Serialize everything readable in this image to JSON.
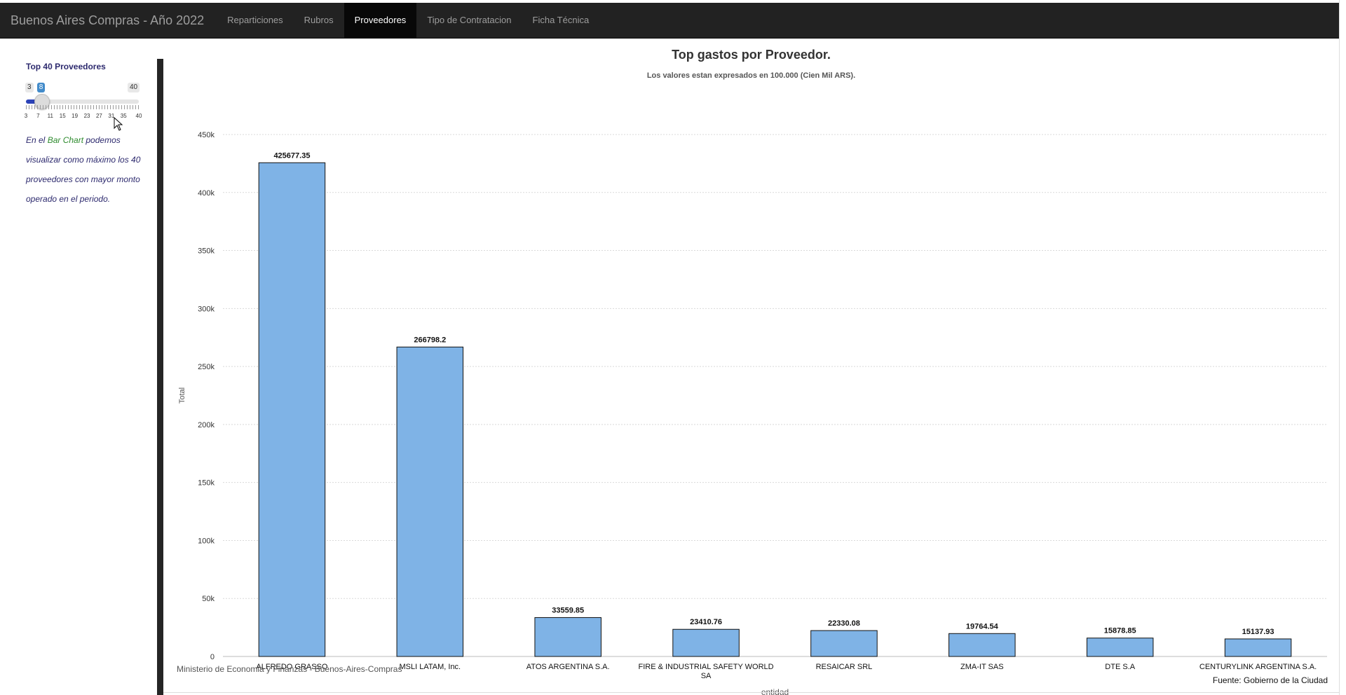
{
  "navbar": {
    "brand": "Buenos Aires Compras - Año 2022",
    "items": [
      {
        "label": "Reparticiones",
        "active": false
      },
      {
        "label": "Rubros",
        "active": false
      },
      {
        "label": "Proveedores",
        "active": true
      },
      {
        "label": "Tipo de Contratacion",
        "active": false
      },
      {
        "label": "Ficha Técnica",
        "active": false
      }
    ]
  },
  "sidebar": {
    "slider": {
      "title": "Top 40 Proveedores",
      "min": 3,
      "max": 40,
      "value": 8,
      "min_label": "3",
      "max_label": "40",
      "value_label": "8",
      "tick_labels": [
        "3",
        "7",
        "11",
        "15",
        "19",
        "23",
        "27",
        "31",
        "35",
        "40"
      ]
    },
    "description_parts": {
      "part1": "En el ",
      "highlight": "Bar Chart",
      "part2": " podemos visualizar como máximo los 40 proveedores con mayor monto operado en el periodo."
    }
  },
  "chart_data": {
    "type": "bar",
    "title": "Top gastos por Proveedor.",
    "subtitle": "Los valores estan expresados en 100.000 (Cien Mil ARS).",
    "xlabel": "entidad",
    "ylabel": "Total",
    "ylim": [
      0,
      450000
    ],
    "yticks": [
      0,
      50000,
      100000,
      150000,
      200000,
      250000,
      300000,
      350000,
      400000,
      450000
    ],
    "ytick_labels": [
      "0",
      "50k",
      "100k",
      "150k",
      "200k",
      "250k",
      "300k",
      "350k",
      "400k",
      "450k"
    ],
    "grid": true,
    "categories": [
      [
        "ALFREDO GRASSO"
      ],
      [
        "MSLI LATAM, Inc."
      ],
      [
        "ATOS ARGENTINA S.A."
      ],
      [
        "FIRE & INDUSTRIAL SAFETY WORLD",
        "SA"
      ],
      [
        "RESAICAR SRL"
      ],
      [
        "ZMA-IT SAS"
      ],
      [
        "DTE S.A"
      ],
      [
        "CENTURYLINK ARGENTINA S.A."
      ]
    ],
    "values": [
      425677.35,
      266798.2,
      33559.85,
      23410.76,
      22330.08,
      19764.54,
      15878.85,
      15137.93
    ],
    "value_labels": [
      "425677.35",
      "266798.2",
      "33559.85",
      "23410.76",
      "22330.08",
      "19764.54",
      "15878.85",
      "15137.93"
    ],
    "bar_color": "#7fb3e6",
    "bar_stroke": "#111111"
  },
  "footer": {
    "left": "Ministerio de Economia y Finanzas - Buenos-Aires-Compras",
    "right": "Fuente: Gobierno de la Ciudad"
  }
}
